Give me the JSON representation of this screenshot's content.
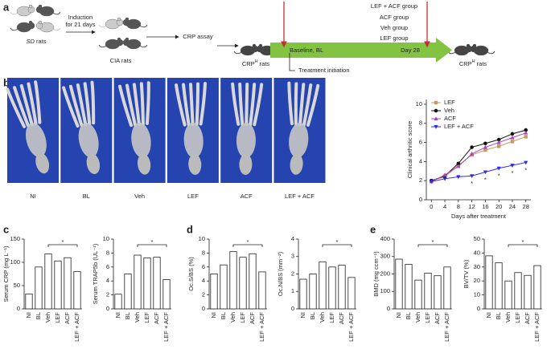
{
  "labels": [
    "a",
    "b",
    "c",
    "d",
    "e"
  ],
  "schematic": {
    "sd_rats": {
      "italic": "SD",
      "rest": "rats"
    },
    "induction": [
      "Induction",
      "for 21 days"
    ],
    "cia_rats": "CIA rats",
    "crp_assay": "CRP assay",
    "crph_rats": {
      "base": "CRP",
      "sup": "H",
      "rest": "rats"
    },
    "baseline": "Baseline, BL",
    "treatment": "Treatment initiation",
    "groups": [
      "LEF + ACF group",
      "ACF group",
      "Veh group",
      "LEF group"
    ],
    "day": "Day 28",
    "crph_rats_end": {
      "base": "CRP",
      "sup": "H",
      "rest": "rats"
    }
  },
  "images": [
    "NI",
    "BL",
    "Veh",
    "LEF",
    "ACF",
    "LEF + ACF"
  ],
  "chart_data": [
    {
      "type": "line",
      "ylabel": "Clinical arthritic score",
      "xlabel": "Days after treatment",
      "x": [
        0,
        4,
        8,
        12,
        16,
        20,
        24,
        28
      ],
      "xlim": [
        -1.5,
        29.5
      ],
      "xticks": [
        0,
        4,
        8,
        12,
        16,
        20,
        24,
        28
      ],
      "ylim": [
        0,
        10.5
      ],
      "yticks": [
        0,
        2,
        4,
        6,
        8,
        10
      ],
      "legend": "upper left",
      "series": [
        {
          "name": "LEF",
          "color": "#c49a64",
          "marker": "square",
          "values": [
            2.0,
            2.4,
            3.6,
            4.7,
            5.2,
            5.6,
            6.1,
            6.6
          ]
        },
        {
          "name": "Veh",
          "color": "#111111",
          "marker": "circle",
          "values": [
            2.0,
            2.5,
            3.8,
            5.5,
            5.9,
            6.3,
            6.9,
            7.3
          ]
        },
        {
          "name": "ACF",
          "color": "#b040c0",
          "marker": "triangle",
          "values": [
            1.9,
            2.6,
            3.5,
            4.8,
            5.5,
            6.0,
            6.5,
            7.0
          ]
        },
        {
          "name": "LEF + ACF",
          "color": "#2a2af0",
          "marker": "triangle-down",
          "values": [
            1.9,
            2.2,
            2.4,
            2.5,
            2.9,
            3.3,
            3.6,
            3.9
          ]
        }
      ],
      "annotations": [
        {
          "x": 12,
          "text": "*"
        },
        {
          "x": 16,
          "text": "*"
        },
        {
          "x": 20,
          "text": "*"
        },
        {
          "x": 24,
          "text": "*"
        },
        {
          "x": 28,
          "text": "*"
        }
      ]
    },
    {
      "type": "bar",
      "ylabel": "Serum CRP (mg L⁻¹)",
      "categories": [
        "NI",
        "BL",
        "Veh",
        "LEF",
        "ACF",
        "LEF + ACF"
      ],
      "values": [
        32,
        90,
        118,
        103,
        110,
        80
      ],
      "ylim": [
        0,
        150
      ],
      "yticks": [
        0,
        50,
        100,
        150
      ],
      "color": "#ffffff",
      "annotation": "*"
    },
    {
      "type": "bar",
      "ylabel": "Serum TRAP5b (UL⁻¹)",
      "categories": [
        "NI",
        "BL",
        "Veh",
        "LEF",
        "ACF",
        "LEF + ACF"
      ],
      "values": [
        2.1,
        5.0,
        7.7,
        7.3,
        7.4,
        4.2
      ],
      "ylim": [
        0,
        10
      ],
      "yticks": [
        0,
        2,
        4,
        6,
        8,
        10
      ],
      "color": "#ffffff",
      "annotation": "*"
    },
    {
      "type": "bar",
      "ylabel": "Oc.S/BS (%)",
      "categories": [
        "NI",
        "BL",
        "Veh",
        "LEF",
        "ACF",
        "LEF + ACF"
      ],
      "values": [
        5.0,
        6.3,
        8.2,
        7.4,
        7.9,
        5.3
      ],
      "ylim": [
        0,
        10
      ],
      "yticks": [
        0,
        2,
        4,
        6,
        8,
        10
      ],
      "color": "#ffffff",
      "annotation": "*"
    },
    {
      "type": "bar",
      "ylabel": "Oc.N/BS (mm⁻²)",
      "categories": [
        "NI",
        "BL",
        "Veh",
        "LEF",
        "ACF",
        "LEF + ACF"
      ],
      "values": [
        1.7,
        2.0,
        2.7,
        2.4,
        2.5,
        1.8
      ],
      "ylim": [
        0,
        4
      ],
      "yticks": [
        0,
        1,
        2,
        3,
        4
      ],
      "color": "#ffffff",
      "annotation": "*"
    },
    {
      "type": "bar",
      "ylabel": "BMD (mg ccm⁻¹)",
      "categories": [
        "NI",
        "BL",
        "Veh",
        "LEF",
        "ACF",
        "LEF + ACF"
      ],
      "values": [
        285,
        255,
        165,
        205,
        190,
        240
      ],
      "ylim": [
        0,
        400
      ],
      "yticks": [
        0,
        100,
        200,
        300,
        400
      ],
      "color": "#ffffff",
      "annotation": "*"
    },
    {
      "type": "bar",
      "ylabel": "BV/TV (%)",
      "categories": [
        "NI",
        "BL",
        "Veh",
        "LEF",
        "ACF",
        "LEF + ACF"
      ],
      "values": [
        38,
        33,
        20,
        26,
        24,
        31
      ],
      "ylim": [
        0,
        50
      ],
      "yticks": [
        0,
        10,
        20,
        30,
        40,
        50
      ],
      "color": "#ffffff",
      "annotation": "*"
    }
  ]
}
